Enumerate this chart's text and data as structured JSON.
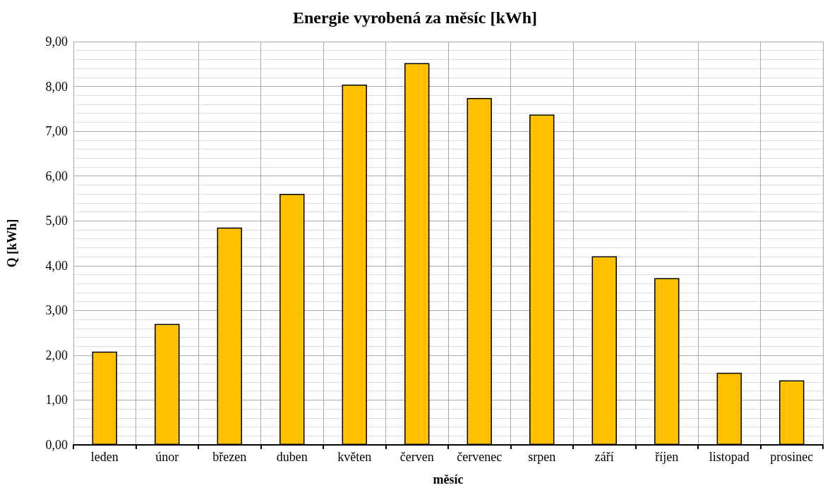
{
  "chart_data": {
    "type": "bar",
    "title": "Energie vyrobená za měsíc [kWh]",
    "xlabel": "měsíc",
    "ylabel": "Q [kWh]",
    "categories": [
      "leden",
      "únor",
      "březen",
      "duben",
      "květen",
      "červen",
      "červenec",
      "srpen",
      "září",
      "říjen",
      "listopad",
      "prosinec"
    ],
    "values": [
      2.08,
      2.7,
      4.85,
      5.6,
      8.04,
      8.52,
      7.74,
      7.37,
      4.21,
      3.72,
      1.61,
      1.44
    ],
    "color": "#ffc000",
    "ylim": [
      0,
      9
    ],
    "yticks": [
      {
        "value": 0,
        "label": "0,00"
      },
      {
        "value": 1,
        "label": "1,00"
      },
      {
        "value": 2,
        "label": "2,00"
      },
      {
        "value": 3,
        "label": "3,00"
      },
      {
        "value": 4,
        "label": "4,00"
      },
      {
        "value": 5,
        "label": "5,00"
      },
      {
        "value": 6,
        "label": "6,00"
      },
      {
        "value": 7,
        "label": "7,00"
      },
      {
        "value": 8,
        "label": "8,00"
      },
      {
        "value": 9,
        "label": "9,00"
      }
    ],
    "grid": true
  }
}
